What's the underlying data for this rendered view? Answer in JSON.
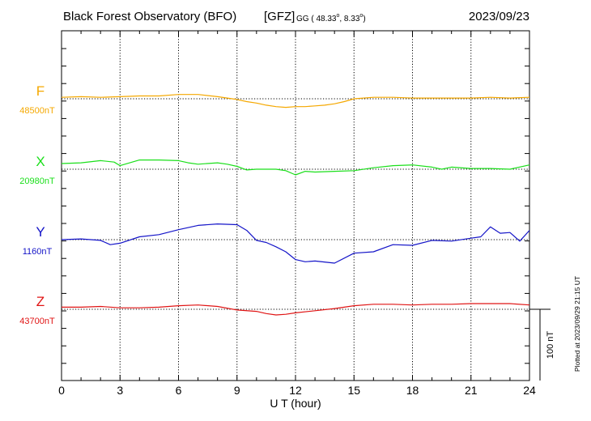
{
  "header": {
    "title": "Black Forest Observatory (BFO)",
    "institute": "[GFZ]",
    "coords_prefix": "GG ( 48.33",
    "deg1": "o",
    "coords_mid": ",   8.33",
    "deg2": "o",
    "coords_suffix": ")",
    "date": "2023/09/23"
  },
  "plotted_note": "Plotted at 2023/09/29 21:15 UT",
  "scale_label": "100 nT",
  "colors": {
    "F": "#f5a800",
    "X": "#1adf1a",
    "Y": "#1414c8",
    "Z": "#e01414"
  },
  "chart_data": {
    "type": "line",
    "xlabel": "U T (hour)",
    "x_ticks": [
      "0",
      "3",
      "6",
      "9",
      "12",
      "15",
      "18",
      "21",
      "24"
    ],
    "xlim": [
      0,
      24
    ],
    "scale_nT": 100,
    "grid": true,
    "series": [
      {
        "name": "F",
        "baseline_label": "48500nT",
        "baseline_nT": 48500,
        "x": [
          0,
          1,
          2,
          3,
          4,
          5,
          6,
          7,
          8,
          8.5,
          9,
          9.5,
          10,
          10.5,
          11,
          11.5,
          12,
          12.5,
          13,
          13.5,
          14,
          14.5,
          15,
          16,
          17,
          18,
          19,
          20,
          21,
          22,
          23,
          24
        ],
        "values": [
          48502,
          48503,
          48502,
          48503,
          48504,
          48504,
          48506,
          48506,
          48503,
          48501,
          48499,
          48496,
          48494,
          48491,
          48489,
          48488,
          48489,
          48489,
          48490,
          48491,
          48493,
          48496,
          48500,
          48502,
          48502,
          48501,
          48501,
          48501,
          48501,
          48502,
          48501,
          48502
        ]
      },
      {
        "name": "X",
        "baseline_label": "20980nT",
        "baseline_nT": 20980,
        "x": [
          0,
          1,
          2,
          2.7,
          3,
          4,
          5,
          6,
          6.5,
          7,
          8,
          8.5,
          9,
          9.5,
          10,
          11,
          11.5,
          12,
          12.5,
          13,
          14,
          15,
          16,
          17,
          18,
          19,
          19.5,
          20,
          21,
          22,
          23,
          24
        ],
        "values": [
          20988,
          20989,
          20992,
          20990,
          20985,
          20993,
          20993,
          20992,
          20989,
          20987,
          20989,
          20987,
          20984,
          20979,
          20980,
          20980,
          20978,
          20972,
          20977,
          20976,
          20977,
          20978,
          20982,
          20985,
          20986,
          20983,
          20980,
          20983,
          20981,
          20981,
          20980,
          20986
        ]
      },
      {
        "name": "Y",
        "baseline_label": "1160nT",
        "baseline_nT": 1160,
        "x": [
          0,
          1,
          2,
          2.5,
          3,
          4,
          5,
          6,
          7,
          8,
          9,
          9.5,
          10,
          10.5,
          11,
          11.5,
          12,
          12.5,
          13,
          14,
          15,
          16,
          17,
          18,
          19,
          20,
          21,
          21.5,
          22,
          22.5,
          23,
          23.5,
          24
        ],
        "values": [
          1160,
          1161,
          1159,
          1153,
          1155,
          1164,
          1167,
          1174,
          1180,
          1182,
          1181,
          1173,
          1159,
          1156,
          1150,
          1143,
          1132,
          1129,
          1130,
          1127,
          1141,
          1143,
          1153,
          1152,
          1159,
          1158,
          1162,
          1164,
          1178,
          1169,
          1170,
          1158,
          1173
        ]
      },
      {
        "name": "Z",
        "baseline_label": "43700nT",
        "baseline_nT": 43700,
        "x": [
          0,
          1,
          2,
          3,
          4,
          5,
          6,
          7,
          8,
          9,
          10,
          10.5,
          11,
          11.5,
          12,
          13,
          14,
          15,
          16,
          17,
          18,
          19,
          20,
          21,
          22,
          23,
          24
        ],
        "values": [
          43703,
          43703,
          43704,
          43702,
          43702,
          43703,
          43705,
          43706,
          43704,
          43699,
          43697,
          43694,
          43692,
          43693,
          43695,
          43698,
          43701,
          43705,
          43707,
          43707,
          43706,
          43707,
          43707,
          43708,
          43708,
          43708,
          43706
        ]
      }
    ]
  }
}
